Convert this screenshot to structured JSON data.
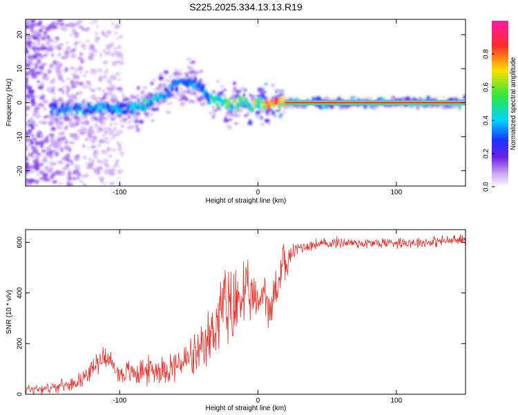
{
  "title": "S225.2025.334.13.13.R19",
  "colors": {
    "frame": "#000000",
    "snr_line": "#e8302a",
    "ridge_core": "#e8182f",
    "cmap": [
      "#ffffff",
      "#c9a6f0",
      "#6a1fe6",
      "#1a33ff",
      "#00d4ff",
      "#2ee83a",
      "#ffe000",
      "#ff2a2a",
      "#ff1aa8"
    ]
  },
  "chart_data": [
    {
      "type": "heatmap",
      "title": "",
      "xlabel": "Height of straight line (km)",
      "ylabel": "Frequency (Hz)",
      "xlim": [
        -168,
        150
      ],
      "ylim": [
        -24.5,
        24.5
      ],
      "xticks": [
        -100,
        0,
        100
      ],
      "yticks": [
        -20,
        -10,
        0,
        10,
        20
      ],
      "colorbar": {
        "label": "Normalized spectral amplitude",
        "range": [
          0,
          1
        ],
        "ticks": [
          0.0,
          0.2,
          0.4,
          0.6,
          0.8
        ]
      },
      "ridge": {
        "description": "dominant frequency track vs height",
        "x": [
          -145,
          -130,
          -115,
          -100,
          -85,
          -70,
          -60,
          -50,
          -42,
          -35,
          -25,
          -18,
          -10,
          -5,
          0,
          5,
          10,
          20,
          40,
          80,
          120,
          150
        ],
        "y": [
          -2,
          -2,
          -1.5,
          -2,
          -1,
          2,
          5,
          6,
          5,
          1,
          0,
          -1,
          1,
          -2,
          0,
          -1,
          0,
          0,
          0,
          0,
          0,
          0
        ],
        "amplitude": [
          0.35,
          0.4,
          0.4,
          0.4,
          0.45,
          0.45,
          0.35,
          0.35,
          0.4,
          0.45,
          0.55,
          0.6,
          0.65,
          0.6,
          0.65,
          0.75,
          0.85,
          0.9,
          0.95,
          0.95,
          0.97,
          0.97
        ]
      }
    },
    {
      "type": "line",
      "title": "",
      "xlabel": "Height of straight line (km)",
      "ylabel": "SNR (10 * v/v)",
      "xlim": [
        -168,
        150
      ],
      "ylim": [
        0,
        650
      ],
      "xticks": [
        -100,
        0,
        100
      ],
      "yticks": [
        0,
        200,
        400,
        600
      ],
      "series": [
        {
          "name": "SNR",
          "x": [
            -168,
            -150,
            -135,
            -125,
            -110,
            -105,
            -100,
            -85,
            -70,
            -60,
            -50,
            -40,
            -32,
            -25,
            -20,
            -12,
            -5,
            0,
            5,
            10,
            12,
            15,
            18,
            20,
            25,
            30,
            40,
            60,
            80,
            100,
            120,
            150
          ],
          "y": [
            20,
            25,
            40,
            70,
            160,
            110,
            80,
            90,
            100,
            110,
            140,
            160,
            260,
            360,
            300,
            400,
            380,
            360,
            420,
            300,
            430,
            420,
            560,
            500,
            560,
            580,
            590,
            600,
            595,
            600,
            600,
            610
          ],
          "noise_amplitude": [
            20,
            20,
            20,
            30,
            40,
            40,
            40,
            50,
            50,
            60,
            70,
            90,
            120,
            150,
            170,
            140,
            90,
            70,
            80,
            90,
            100,
            90,
            60,
            50,
            30,
            25,
            20,
            20,
            20,
            20,
            20,
            20
          ]
        }
      ]
    }
  ]
}
